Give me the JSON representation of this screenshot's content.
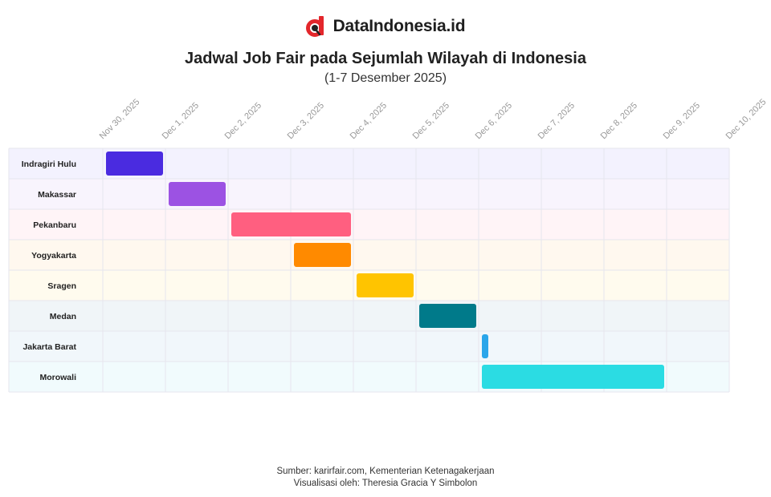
{
  "brand": {
    "name": "DataIndonesia.id",
    "logo_icon": "dataindonesia-logo-icon",
    "logo_color": "#e3262b"
  },
  "chart_data": {
    "type": "gantt",
    "title": "Jadwal Job Fair pada Sejumlah Wilayah di Indonesia",
    "subtitle": "(1-7 Desember 2025)",
    "x_axis": {
      "type": "date",
      "range": [
        "2025-11-30",
        "2025-12-10"
      ],
      "ticks": [
        "Nov 30, 2025",
        "Dec 1, 2025",
        "Dec 2, 2025",
        "Dec 3, 2025",
        "Dec 4, 2025",
        "Dec 5, 2025",
        "Dec 6, 2025",
        "Dec 7, 2025",
        "Dec 8, 2025",
        "Dec 9, 2025",
        "Dec 10, 2025"
      ],
      "tick_position": "top"
    },
    "grid": true,
    "tasks": [
      {
        "name": "Indragiri Hulu",
        "start": "2025-11-30",
        "end": "2025-12-01",
        "color": "#4a2be0",
        "row_bg": "#f3f2fe"
      },
      {
        "name": "Makassar",
        "start": "2025-12-01",
        "end": "2025-12-02",
        "color": "#9c52e3",
        "row_bg": "#f8f4fd"
      },
      {
        "name": "Pekanbaru",
        "start": "2025-12-02",
        "end": "2025-12-04",
        "color": "#ff5f80",
        "row_bg": "#fff4f7"
      },
      {
        "name": "Yogyakarta",
        "start": "2025-12-03",
        "end": "2025-12-04",
        "color": "#ff8a00",
        "row_bg": "#fff8ef"
      },
      {
        "name": "Sragen",
        "start": "2025-12-04",
        "end": "2025-12-05",
        "color": "#ffc400",
        "row_bg": "#fffbee"
      },
      {
        "name": "Medan",
        "start": "2025-12-05",
        "end": "2025-12-06",
        "color": "#007a8a",
        "row_bg": "#f0f5f8"
      },
      {
        "name": "Jakarta Barat",
        "start": "2025-12-06",
        "end": "2025-12-06",
        "color": "#2aa6ea",
        "row_bg": "#f1f7fb"
      },
      {
        "name": "Morowali",
        "start": "2025-12-06",
        "end": "2025-12-09",
        "color": "#2bdce3",
        "row_bg": "#f1fbfd"
      }
    ]
  },
  "footer": {
    "source": "Sumber: karirfair.com, Kementerian Ketenagakerjaan",
    "visualization": "Visualisasi oleh: Theresia Gracia Y Simbolon"
  }
}
